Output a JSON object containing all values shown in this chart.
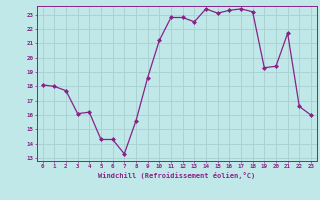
{
  "x": [
    0,
    1,
    2,
    3,
    4,
    5,
    6,
    7,
    8,
    9,
    10,
    11,
    12,
    13,
    14,
    15,
    16,
    17,
    18,
    19,
    20,
    21,
    22,
    23
  ],
  "y": [
    18.1,
    18.0,
    17.7,
    16.1,
    16.2,
    14.3,
    14.3,
    13.3,
    15.6,
    18.6,
    21.2,
    22.8,
    22.8,
    22.5,
    23.4,
    23.1,
    23.3,
    23.4,
    23.2,
    19.3,
    19.4,
    21.7,
    16.6,
    16.0
  ],
  "line_color": "#882288",
  "marker_color": "#882288",
  "bg_color": "#c0e8e8",
  "grid_color": "#a8d0d0",
  "xlabel": "Windchill (Refroidissement éolien,°C)",
  "xlabel_color": "#882288",
  "tick_color": "#882288",
  "ylim_min": 12.8,
  "ylim_max": 23.6,
  "yticks": [
    13,
    14,
    15,
    16,
    17,
    18,
    19,
    20,
    21,
    22,
    23
  ],
  "xticks": [
    0,
    1,
    2,
    3,
    4,
    5,
    6,
    7,
    8,
    9,
    10,
    11,
    12,
    13,
    14,
    15,
    16,
    17,
    18,
    19,
    20,
    21,
    22,
    23
  ]
}
